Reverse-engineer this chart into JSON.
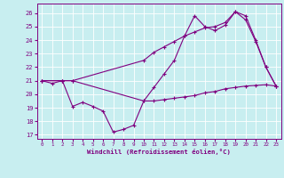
{
  "bg_color": "#c8eef0",
  "line_color": "#800080",
  "grid_color": "#ffffff",
  "xlabel": "Windchill (Refroidissement éolien,°C)",
  "xlim": [
    -0.5,
    23.5
  ],
  "ylim": [
    16.7,
    26.7
  ],
  "yticks": [
    17,
    18,
    19,
    20,
    21,
    22,
    23,
    24,
    25,
    26
  ],
  "xticks": [
    0,
    1,
    2,
    3,
    4,
    5,
    6,
    7,
    8,
    9,
    10,
    11,
    12,
    13,
    14,
    15,
    16,
    17,
    18,
    19,
    20,
    21,
    22,
    23
  ],
  "line1_x": [
    0,
    1,
    2,
    3,
    4,
    5,
    6,
    7,
    8,
    9,
    10,
    11,
    12,
    13,
    14,
    15,
    16,
    17,
    18,
    19,
    20,
    21,
    22,
    23
  ],
  "line1_y": [
    21.0,
    20.8,
    21.0,
    19.1,
    19.4,
    19.1,
    18.75,
    17.2,
    17.4,
    17.7,
    19.5,
    19.5,
    19.6,
    19.7,
    19.8,
    19.9,
    20.1,
    20.2,
    20.4,
    20.5,
    20.6,
    20.65,
    20.7,
    20.6
  ],
  "line2_x": [
    0,
    2,
    3,
    10,
    11,
    12,
    13,
    14,
    15,
    16,
    17,
    18,
    19,
    20,
    21,
    22,
    23
  ],
  "line2_y": [
    21.0,
    21.0,
    21.0,
    19.5,
    20.5,
    21.5,
    22.5,
    24.3,
    25.8,
    25.0,
    24.7,
    25.1,
    26.1,
    25.5,
    23.9,
    22.0,
    20.6
  ],
  "line3_x": [
    0,
    2,
    3,
    10,
    11,
    12,
    13,
    14,
    15,
    16,
    17,
    18,
    19,
    20,
    21,
    22,
    23
  ],
  "line3_y": [
    21.0,
    21.0,
    21.0,
    22.5,
    23.1,
    23.5,
    23.9,
    24.3,
    24.6,
    24.9,
    25.0,
    25.3,
    26.1,
    25.8,
    24.0,
    22.0,
    20.6
  ]
}
